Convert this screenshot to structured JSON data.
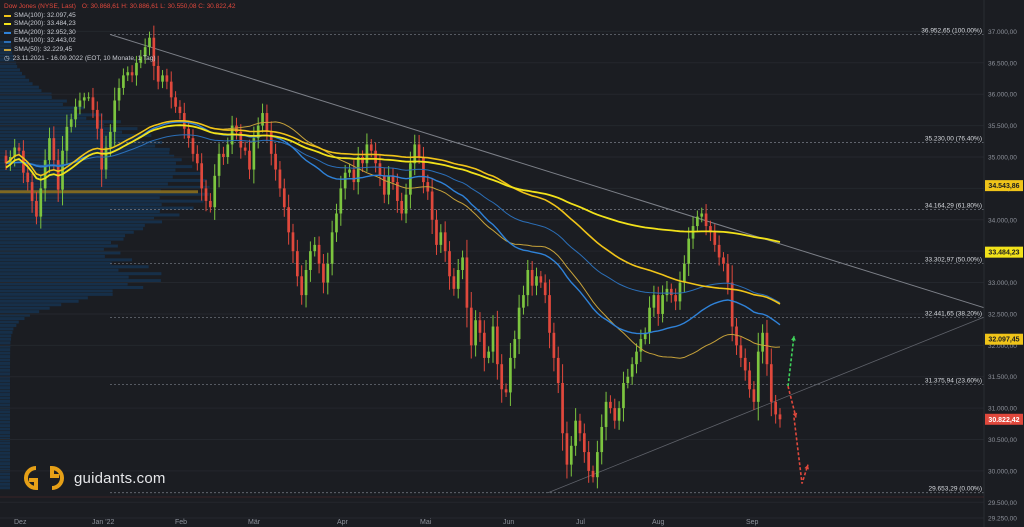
{
  "header": {
    "title": "Dow Jones (NYSE, Last)",
    "ohlc": "O: 30.868,61  H: 30.886,61  L: 30.550,08  C: 30.822,42",
    "indicators": [
      {
        "label": "SMA(100)",
        "value": "32.097,45",
        "color": "#f0c419"
      },
      {
        "label": "SMA(200)",
        "value": "33.484,23",
        "color": "#f2e21a"
      },
      {
        "label": "EMA(200)",
        "value": "32.952,30",
        "color": "#2f82d8"
      },
      {
        "label": "EMA(100)",
        "value": "32.443,02",
        "color": "#2b6fb8"
      },
      {
        "label": "SMA(50)",
        "value": "32.229,45",
        "color": "#c7a23a"
      }
    ],
    "period": "23.11.2021 - 16.09.2022   (EOT, 10 Monate, 1 Tag)"
  },
  "brand": {
    "name": "guidants.com"
  },
  "chart_data": {
    "type": "candlestick",
    "x_ticks": [
      "Dez",
      "Jan '22",
      "Feb",
      "Mär",
      "Apr",
      "Mai",
      "Jun",
      "Jul",
      "Aug",
      "Sep"
    ],
    "y_ticks": [
      "37.000,00",
      "36.500,00",
      "36.000,00",
      "35.500,00",
      "35.000,00",
      "34.500,00",
      "34.000,00",
      "33.500,00",
      "33.000,00",
      "32.500,00",
      "32.000,00",
      "31.500,00",
      "31.000,00",
      "30.500,00",
      "30.000,00",
      "29.500,00",
      "29.250,00"
    ],
    "y_tick_values": [
      37000,
      36500,
      36000,
      35500,
      35000,
      34500,
      34000,
      33500,
      33000,
      32500,
      32000,
      31500,
      31000,
      30500,
      30000,
      29500,
      29250
    ],
    "ylim": [
      29250,
      37150
    ],
    "fib_levels": [
      {
        "label": "36.952,65 (100.00%)",
        "value": 36952.65
      },
      {
        "label": "35.230,00 (76.40%)",
        "value": 35230.0
      },
      {
        "label": "34.164,29 (61.80%)",
        "value": 34164.29
      },
      {
        "label": "33.302,97 (50.00%)",
        "value": 33302.97
      },
      {
        "label": "32.441,65 (38.20%)",
        "value": 32441.65
      },
      {
        "label": "31.375,94 (23.60%)",
        "value": 31375.94
      },
      {
        "label": "29.653,29 (0.00%)",
        "value": 29653.29
      }
    ],
    "price_tags": [
      {
        "label": "34.543,86",
        "value": 34543.86,
        "color": "#f0c419",
        "text": "#1b1d22"
      },
      {
        "label": "33.484,23",
        "value": 33484.23,
        "color": "#f2e21a",
        "text": "#1b1d22"
      },
      {
        "label": "32.097,45",
        "value": 32097.45,
        "color": "#f0c419",
        "text": "#1b1d22"
      },
      {
        "label": "30.822,42",
        "value": 30822.42,
        "color": "#e0483c",
        "text": "#ffffff"
      }
    ],
    "closes": [
      34900,
      35000,
      35150,
      35100,
      34750,
      34600,
      34300,
      34050,
      34500,
      34950,
      35300,
      34950,
      34480,
      35100,
      35480,
      35600,
      35800,
      35900,
      35950,
      35950,
      35750,
      35450,
      34800,
      35150,
      35400,
      35900,
      36100,
      36300,
      36350,
      36300,
      36500,
      36600,
      36750,
      36900,
      36450,
      36200,
      36300,
      36200,
      35950,
      35800,
      35700,
      35450,
      35300,
      35050,
      34900,
      34500,
      34300,
      34200,
      34700,
      35050,
      35000,
      35200,
      35500,
      35400,
      35150,
      35100,
      34800,
      35300,
      35500,
      35700,
      35400,
      35050,
      34800,
      34500,
      34200,
      33800,
      33500,
      33100,
      32800,
      33200,
      33500,
      33600,
      33300,
      33000,
      33300,
      33800,
      34100,
      34500,
      34750,
      34800,
      34600,
      35000,
      34900,
      35200,
      35100,
      34900,
      34700,
      34400,
      34700,
      34600,
      34300,
      34100,
      34400,
      34900,
      35200,
      35000,
      34600,
      34450,
      34000,
      33600,
      33800,
      33500,
      33100,
      32900,
      33200,
      33400,
      32600,
      32000,
      32400,
      32200,
      31800,
      31900,
      32300,
      31700,
      31300,
      31250,
      31800,
      32100,
      32600,
      32800,
      33200,
      32950,
      33100,
      33000,
      32800,
      32200,
      31800,
      31400,
      30600,
      30100,
      30400,
      30800,
      30600,
      30300,
      30000,
      29900,
      30300,
      30700,
      31100,
      31000,
      30800,
      31000,
      31400,
      31500,
      31700,
      31900,
      32100,
      32200,
      32600,
      32800,
      32500,
      32800,
      32900,
      32800,
      32700,
      33000,
      33300,
      33700,
      33900,
      34050,
      34100,
      33900,
      33800,
      33600,
      33400,
      33300,
      33000,
      32300,
      32000,
      31800,
      31600,
      31300,
      31100,
      31900,
      32200,
      31700,
      31100,
      30900,
      30822
    ]
  }
}
